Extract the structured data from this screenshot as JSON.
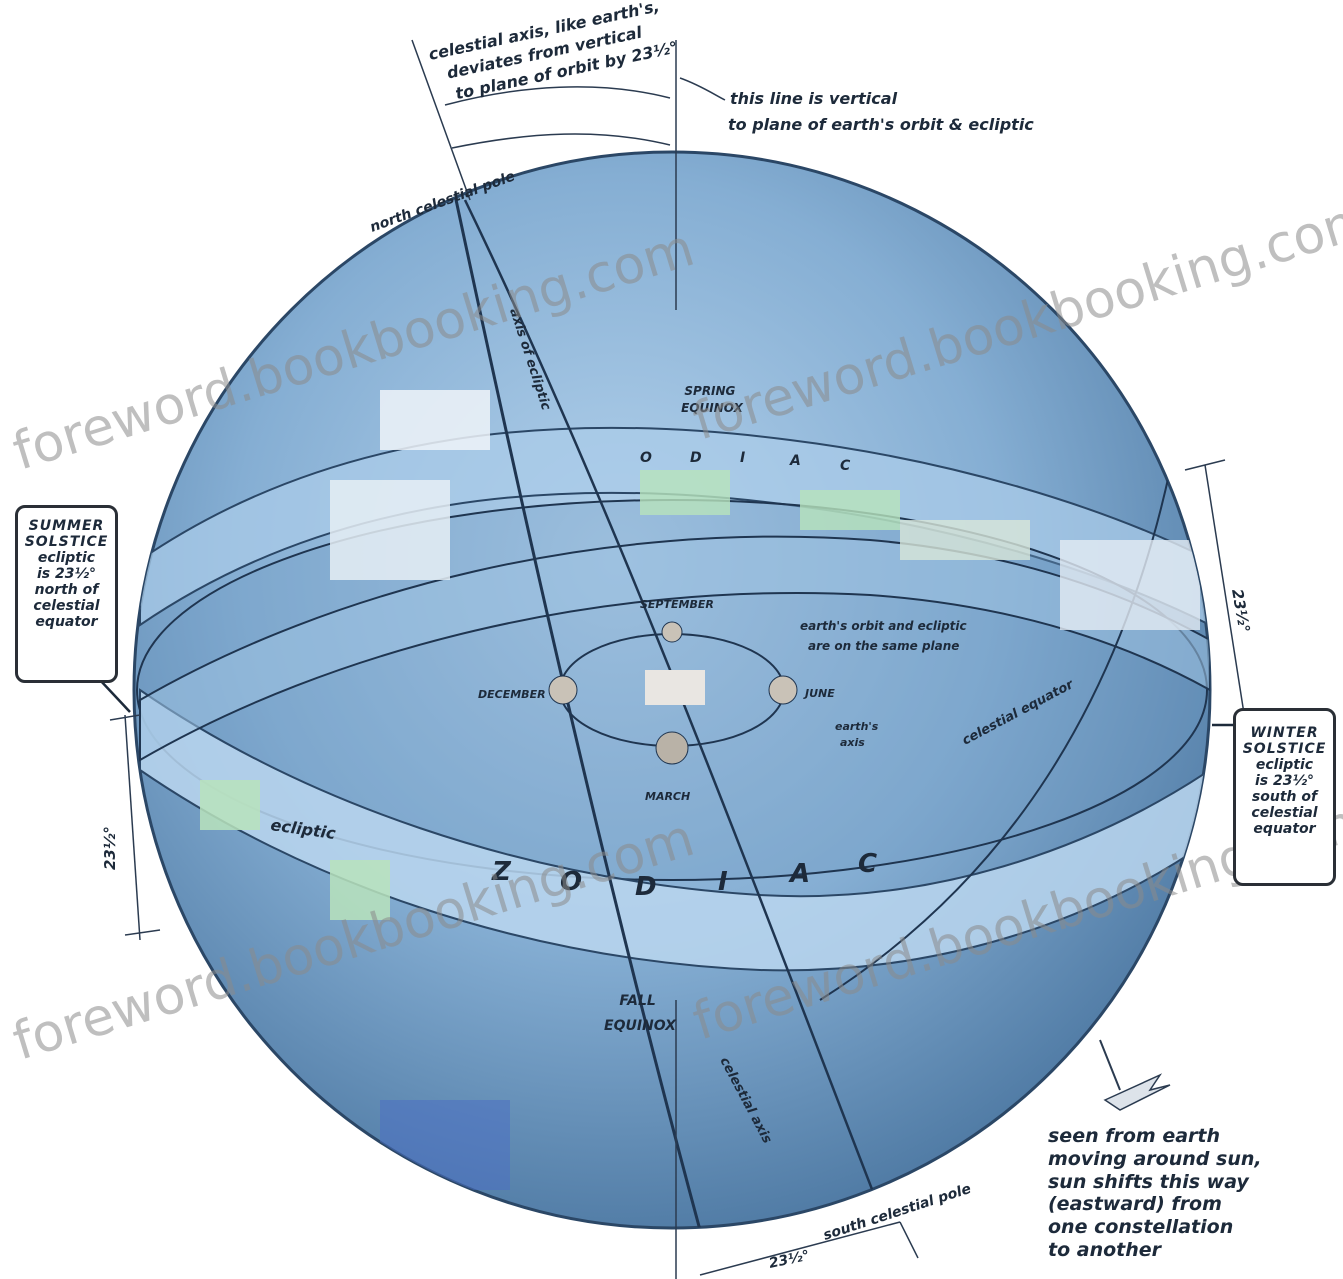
{
  "annotations": {
    "celestial_axis": [
      "celestial axis, like earth's,",
      "deviates from vertical",
      "to plane of orbit by 23½°"
    ],
    "vertical_line": [
      "this line is vertical",
      "to plane of earth's orbit & ecliptic"
    ],
    "north_pole": "north celestial pole",
    "south_pole": "south celestial pole",
    "south_angle": "23½°",
    "summer_solstice": {
      "title": "SUMMER SOLSTICE",
      "lines": [
        "ecliptic",
        "is 23½°",
        "north of",
        "celestial",
        "equator"
      ]
    },
    "winter_solstice": {
      "title": "WINTER SOLSTICE",
      "lines": [
        "ecliptic",
        "is 23½°",
        "south of",
        "celestial",
        "equator"
      ]
    },
    "angle_left": "23½°",
    "angle_right": "23½°",
    "shift_note": [
      "seen from earth",
      "moving around sun,",
      "sun shifts this way",
      "(eastward) from",
      "one constellation",
      "to another"
    ],
    "zodiac_letters": [
      "Z",
      "O",
      "D",
      "I",
      "A",
      "C"
    ],
    "zodiac_top_letters": [
      "O",
      "D",
      "I",
      "A",
      "C"
    ],
    "ecliptic": "ecliptic",
    "celestial_equator": "celestial equator",
    "axis_of_ecliptic": "axis of ecliptic",
    "celestial_axis_label": "celestial axis",
    "fall_equinox": [
      "FALL",
      "EQUINOX"
    ],
    "spring_equinox": [
      "SPRING",
      "EQUINOX"
    ],
    "months": {
      "september": "SEPTEMBER",
      "december": "DECEMBER",
      "june": "JUNE",
      "march": "MARCH"
    },
    "orbit_note": [
      "earth's orbit and ecliptic",
      "are on the same plane"
    ],
    "earths_axis": [
      "earth's",
      "axis"
    ]
  },
  "watermark": "foreword.bookbooking.com",
  "colors": {
    "sphere_light": "#aecde9",
    "sphere_mid": "#7ea7cc",
    "sphere_dark": "#4f7aa3",
    "band": "#b9d6ee",
    "line": "#1f3550",
    "green": "#b8e3bc"
  }
}
